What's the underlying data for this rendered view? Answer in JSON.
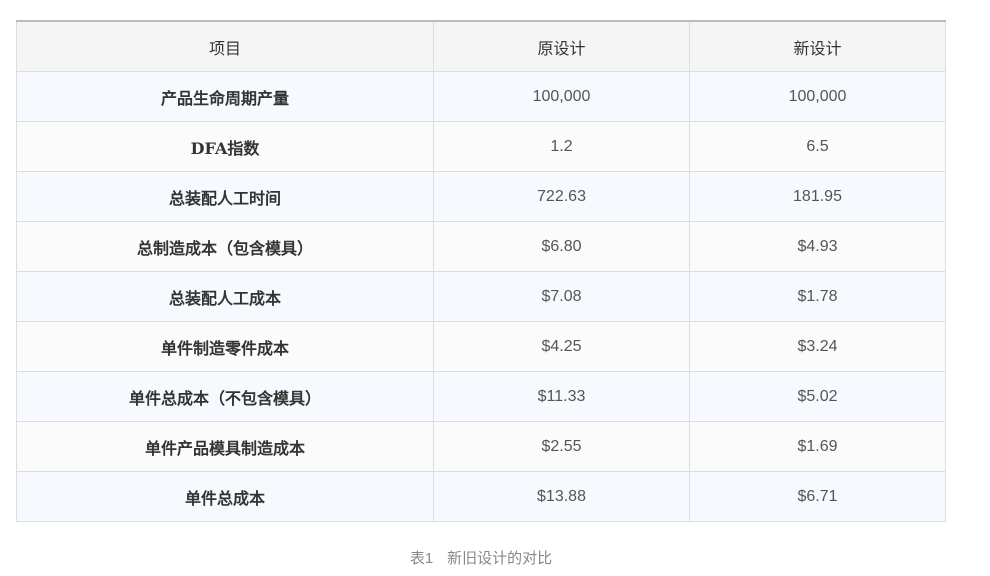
{
  "table": {
    "headers": [
      "项目",
      "原设计",
      "新设计"
    ],
    "rows": [
      [
        "产品生命周期产量",
        "100,000",
        "100,000"
      ],
      [
        "DFA指数",
        "1.2",
        "6.5"
      ],
      [
        "总装配人工时间",
        "722.63",
        "181.95"
      ],
      [
        "总制造成本（包含模具）",
        "$6.80",
        "$4.93"
      ],
      [
        "总装配人工成本",
        "$7.08",
        "$1.78"
      ],
      [
        "单件制造零件成本",
        "$4.25",
        "$3.24"
      ],
      [
        "单件总成本（不包含模具）",
        "$11.33",
        "$5.02"
      ],
      [
        "单件产品模具制造成本",
        "$2.55",
        "$1.69"
      ],
      [
        "单件总成本",
        "$13.88",
        "$6.71"
      ]
    ]
  },
  "caption": {
    "label": "表1",
    "text": "新旧设计的对比"
  }
}
